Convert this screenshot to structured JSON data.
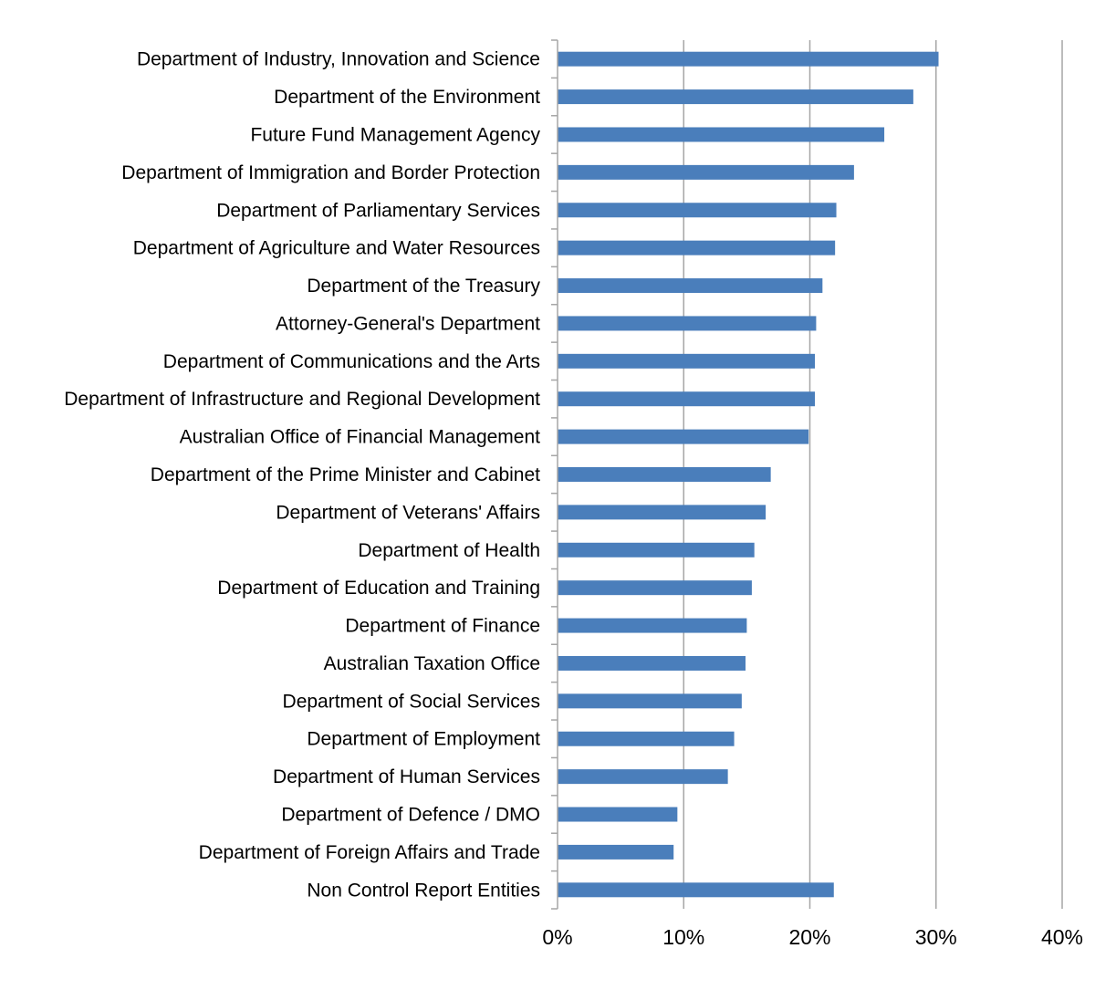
{
  "chart_data": {
    "type": "bar",
    "orientation": "horizontal",
    "title": "",
    "xlabel": "",
    "ylabel": "",
    "categories": [
      "Department of Industry, Innovation and Science",
      "Department of the Environment",
      "Future Fund Management Agency",
      "Department of Immigration and Border Protection",
      "Department of Parliamentary Services",
      "Department of Agriculture and Water Resources",
      "Department of the Treasury",
      "Attorney-General's Department",
      "Department of Communications and the Arts",
      "Department of Infrastructure and Regional Development",
      "Australian Office of Financial Management",
      "Department of the Prime Minister and Cabinet",
      "Department of Veterans' Affairs",
      "Department of Health",
      "Department of Education and Training",
      "Department of Finance",
      "Australian Taxation Office",
      "Department of Social Services",
      "Department of Employment",
      "Department of Human Services",
      "Department of Defence / DMO",
      "Department of Foreign Affairs and Trade",
      "Non Control Report Entities"
    ],
    "values": [
      30.2,
      28.2,
      25.9,
      23.5,
      22.1,
      22.0,
      21.0,
      20.5,
      20.4,
      20.4,
      19.9,
      16.9,
      16.5,
      15.6,
      15.4,
      15.0,
      14.9,
      14.6,
      14.0,
      13.5,
      9.5,
      9.2,
      21.9
    ],
    "xlim": [
      0,
      40
    ],
    "x_ticks": [
      0,
      10,
      20,
      30,
      40
    ],
    "x_tick_labels": [
      "0%",
      "10%",
      "20%",
      "30%",
      "40%"
    ],
    "grid": "vertical gridlines",
    "legend": "none",
    "bar_color": "#4a7ebb",
    "grid_color": "#a6a6a6"
  }
}
